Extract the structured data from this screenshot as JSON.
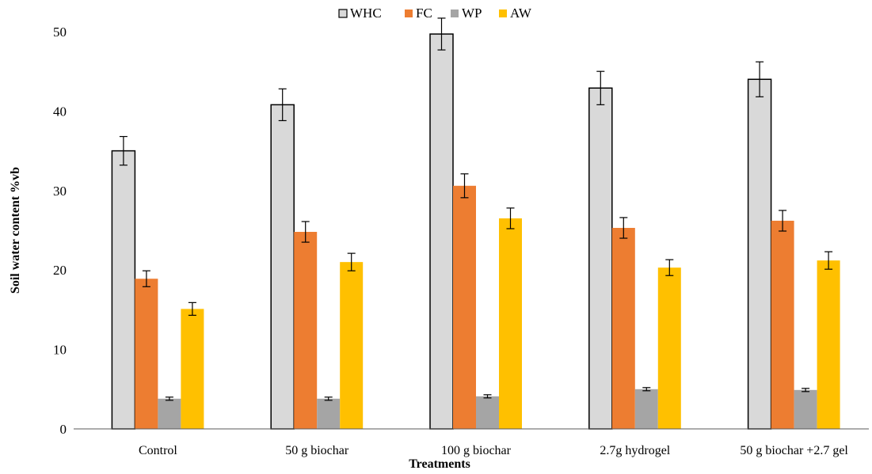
{
  "chart_data": {
    "type": "bar",
    "title": "",
    "xlabel": "Treatments",
    "ylabel": "Soil water content %vb",
    "ylim": [
      0,
      50
    ],
    "yticks": [
      0,
      10,
      20,
      30,
      40,
      50
    ],
    "grid": false,
    "legend_position": "top-center",
    "categories": [
      "Control",
      "50 g biochar",
      "100 g biochar",
      "2.7g hydrogel",
      "50 g biochar +2.7  gel"
    ],
    "series": [
      {
        "name": "WHC",
        "color": "#d9d9d9",
        "outline": "#000000",
        "values": [
          35.0,
          40.8,
          49.7,
          42.9,
          44.0
        ],
        "errors": [
          1.8,
          2.0,
          2.0,
          2.1,
          2.2
        ]
      },
      {
        "name": "FC",
        "color": "#ed7d31",
        "outline": "",
        "values": [
          18.9,
          24.8,
          30.6,
          25.3,
          26.2
        ],
        "errors": [
          1.0,
          1.3,
          1.5,
          1.3,
          1.3
        ]
      },
      {
        "name": "WP",
        "color": "#a5a5a5",
        "outline": "",
        "values": [
          3.8,
          3.8,
          4.1,
          5.0,
          4.9
        ],
        "errors": [
          0.2,
          0.2,
          0.2,
          0.2,
          0.2
        ]
      },
      {
        "name": "AW",
        "color": "#ffc000",
        "outline": "",
        "values": [
          15.1,
          21.0,
          26.5,
          20.3,
          21.2
        ],
        "errors": [
          0.8,
          1.1,
          1.3,
          1.0,
          1.1
        ]
      }
    ]
  }
}
